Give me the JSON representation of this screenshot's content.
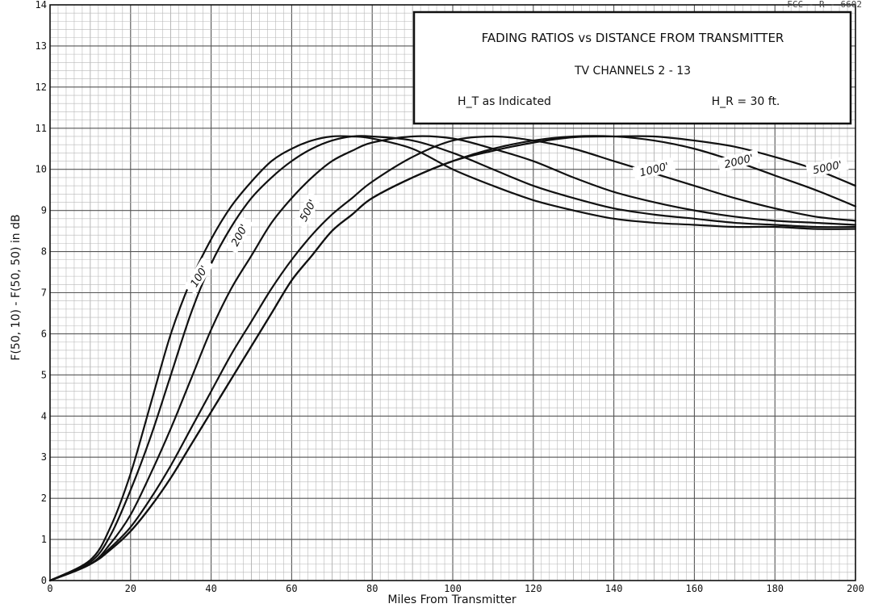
{
  "corner_code": "FCC - R - 6602",
  "chart_data": {
    "type": "line",
    "title": "FADING RATIOS vs DISTANCE FROM TRANSMITTER",
    "subtitle": "TV CHANNELS 2 - 13",
    "legend_ht": "H_T as Indicated",
    "legend_hr": "H_R = 30 ft.",
    "xlabel": "Miles From Transmitter",
    "ylabel": "F(50, 10) - F(50, 50) in dB",
    "xlim": [
      0,
      200
    ],
    "ylim": [
      0,
      14
    ],
    "xticks": [
      "0",
      "20",
      "40",
      "60",
      "80",
      "100",
      "120",
      "140",
      "160",
      "180",
      "200"
    ],
    "yticks": [
      "0",
      "1",
      "2",
      "3",
      "4",
      "5",
      "6",
      "7",
      "8",
      "9",
      "10",
      "11",
      "12",
      "13",
      "14"
    ],
    "grid": true,
    "x": [
      0,
      10,
      15,
      20,
      25,
      30,
      35,
      40,
      45,
      50,
      55,
      60,
      65,
      70,
      75,
      80,
      90,
      100,
      110,
      120,
      130,
      140,
      150,
      160,
      170,
      180,
      190,
      200
    ],
    "series": [
      {
        "name": "100'",
        "values": [
          0,
          0.5,
          1.3,
          2.6,
          4.3,
          6.0,
          7.3,
          8.3,
          9.1,
          9.7,
          10.2,
          10.5,
          10.7,
          10.8,
          10.8,
          10.75,
          10.5,
          10.0,
          9.6,
          9.25,
          9.0,
          8.8,
          8.7,
          8.65,
          8.6,
          8.6,
          8.55,
          8.55
        ]
      },
      {
        "name": "200'",
        "values": [
          0,
          0.45,
          1.1,
          2.2,
          3.5,
          5.0,
          6.5,
          7.7,
          8.6,
          9.3,
          9.8,
          10.2,
          10.5,
          10.7,
          10.8,
          10.8,
          10.7,
          10.4,
          10.0,
          9.6,
          9.3,
          9.05,
          8.9,
          8.8,
          8.7,
          8.65,
          8.6,
          8.6
        ]
      },
      {
        "name": "500'",
        "values": [
          0,
          0.4,
          0.9,
          1.6,
          2.6,
          3.7,
          4.9,
          6.1,
          7.1,
          7.9,
          8.7,
          9.3,
          9.8,
          10.2,
          10.45,
          10.65,
          10.8,
          10.75,
          10.5,
          10.2,
          9.8,
          9.45,
          9.2,
          9.0,
          8.85,
          8.75,
          8.7,
          8.65
        ]
      },
      {
        "name": "1000'",
        "values": [
          0,
          0.4,
          0.8,
          1.3,
          2.0,
          2.8,
          3.7,
          4.6,
          5.5,
          6.3,
          7.1,
          7.8,
          8.4,
          8.9,
          9.3,
          9.7,
          10.3,
          10.7,
          10.8,
          10.7,
          10.5,
          10.2,
          9.9,
          9.6,
          9.3,
          9.05,
          8.85,
          8.75
        ]
      },
      {
        "name": "2000'",
        "values": [
          0,
          0.4,
          0.75,
          1.2,
          1.8,
          2.5,
          3.3,
          4.1,
          4.9,
          5.7,
          6.5,
          7.3,
          7.9,
          8.5,
          8.9,
          9.3,
          9.8,
          10.2,
          10.5,
          10.7,
          10.8,
          10.8,
          10.7,
          10.5,
          10.2,
          9.85,
          9.5,
          9.1
        ]
      },
      {
        "name": "5000'",
        "values": [
          0,
          0.4,
          0.75,
          1.2,
          1.8,
          2.5,
          3.3,
          4.1,
          4.9,
          5.7,
          6.5,
          7.3,
          7.9,
          8.5,
          8.9,
          9.3,
          9.8,
          10.2,
          10.45,
          10.65,
          10.78,
          10.8,
          10.8,
          10.7,
          10.55,
          10.3,
          10.0,
          9.6
        ]
      }
    ],
    "curve_label_positions": [
      {
        "series": "100'",
        "x": 37,
        "y": 7.4
      },
      {
        "series": "200'",
        "x": 47,
        "y": 8.4
      },
      {
        "series": "500'",
        "x": 64,
        "y": 9.0
      },
      {
        "series": "1000'",
        "x": 150,
        "y": 10.0
      },
      {
        "series": "2000'",
        "x": 171,
        "y": 10.2
      },
      {
        "series": "5000'",
        "x": 193,
        "y": 10.05
      }
    ]
  }
}
